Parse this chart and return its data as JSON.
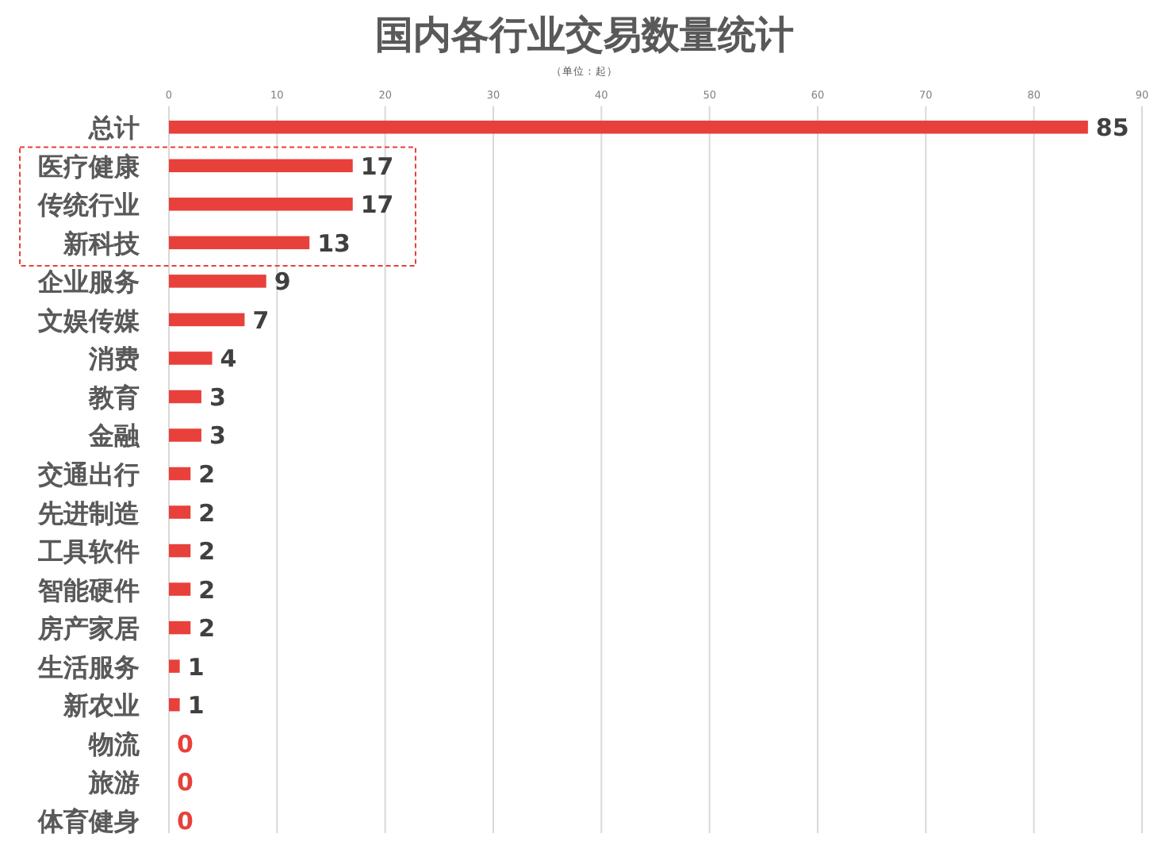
{
  "chart_data": {
    "type": "bar",
    "orientation": "horizontal",
    "title": "国内各行业交易数量统计",
    "subtitle": "（单位：起）",
    "categories": [
      "总计",
      "医疗健康",
      "传统行业",
      "新科技",
      "企业服务",
      "文娱传媒",
      "消费",
      "教育",
      "金融",
      "交通出行",
      "先进制造",
      "工具软件",
      "智能硬件",
      "房产家居",
      "生活服务",
      "新农业",
      "物流",
      "旅游",
      "体育健身"
    ],
    "values": [
      85,
      17,
      17,
      13,
      9,
      7,
      4,
      3,
      3,
      2,
      2,
      2,
      2,
      2,
      1,
      1,
      0,
      0,
      0
    ],
    "color": "#e8403a",
    "xlim": [
      0,
      90
    ],
    "xticks": [
      0,
      10,
      20,
      30,
      40,
      50,
      60,
      70,
      80,
      90
    ],
    "grid": "x",
    "data_labels": true
  }
}
